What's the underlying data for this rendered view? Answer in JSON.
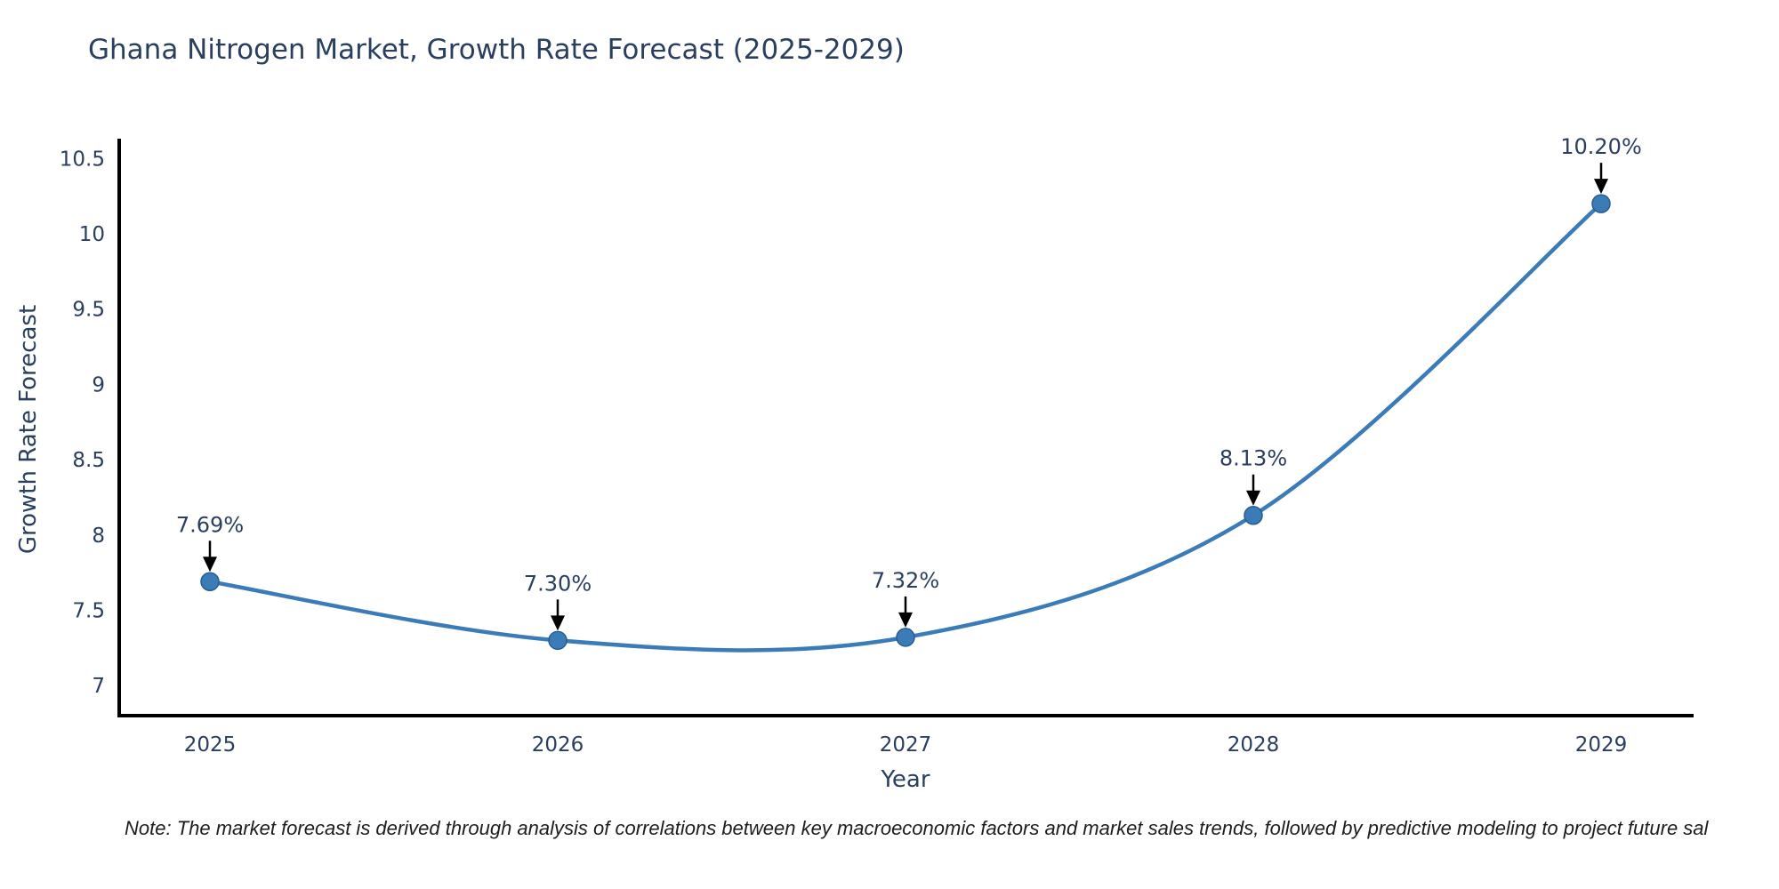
{
  "title": "Ghana Nitrogen Market, Growth Rate Forecast (2025-2029)",
  "note": "Note: The market forecast is derived through analysis of correlations between key macroeconomic factors and market sales trends, followed by predictive modeling to project future sal",
  "chart_data": {
    "type": "line",
    "line_shape": "spline",
    "title": "Ghana Nitrogen Market, Growth Rate Forecast (2025-2029)",
    "xlabel": "Year",
    "ylabel": "Growth Rate Forecast",
    "x": [
      2025,
      2026,
      2027,
      2028,
      2029
    ],
    "y": [
      7.69,
      7.3,
      7.32,
      8.13,
      10.2
    ],
    "point_labels": [
      "7.69%",
      "7.30%",
      "7.32%",
      "8.13%",
      "10.20%"
    ],
    "xticks": [
      "2025",
      "2026",
      "2027",
      "2028",
      "2029"
    ],
    "yticks": [
      7,
      7.5,
      8,
      8.5,
      9,
      9.5,
      10,
      10.5
    ],
    "ylim": [
      6.8,
      10.62
    ],
    "grid": false,
    "legend": "none",
    "markers": true,
    "annotations_have_arrows": true,
    "colors": {
      "line": "#3b7cb8",
      "marker_fill": "#3b7cb8",
      "marker_edge": "#2a5d8f",
      "axis": "#000000",
      "tick_text": "#2a3f5f",
      "annotation_text": "#2a3f5f",
      "arrow": "#000000",
      "title_text": "#2a3f5f",
      "background": "#ffffff"
    }
  }
}
